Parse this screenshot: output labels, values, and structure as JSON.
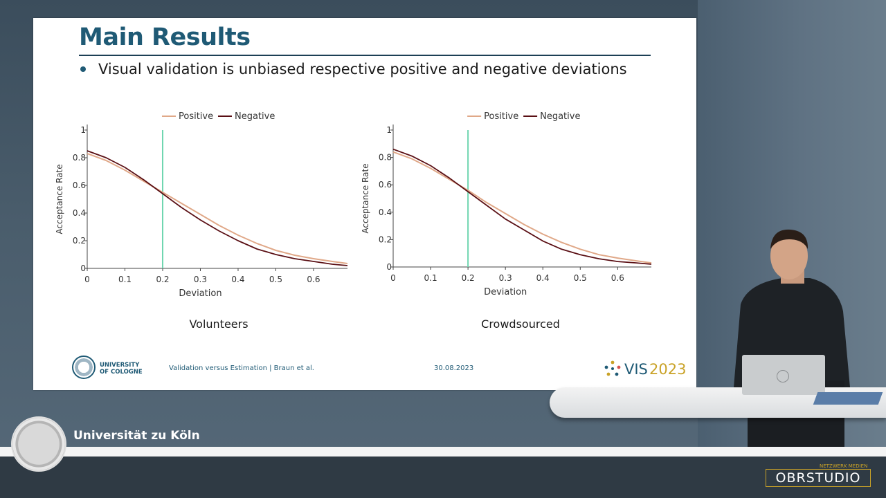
{
  "slide": {
    "title": "Main Results",
    "bullet": "Visual validation is unbiased respective positive and negative deviations",
    "footer": {
      "university_name": "UNIVERSITY\nOF COLOGNE",
      "citation": "Validation versus Estimation | Braun et al.",
      "date": "30.08.2023",
      "vis_text": "VIS",
      "vis_year": "2023"
    }
  },
  "stage": {
    "university_banner": "Universität zu Köln",
    "studio_brand": "OBRSTUDIO",
    "studio_tag": "NETZWERK MEDIEN"
  },
  "colors": {
    "positive": "#e0a888",
    "negative": "#5a0f14",
    "threshold": "#6fd6b0",
    "title": "#1f5a75"
  },
  "chart_data": [
    {
      "type": "line",
      "title": "Volunteers",
      "xlabel": "Deviation",
      "ylabel": "Acceptance Rate",
      "xlim": [
        0,
        0.69
      ],
      "ylim": [
        0,
        1
      ],
      "xticks": [
        "0",
        "0.1",
        "0.2",
        "0.3",
        "0.4",
        "0.5",
        "0.6"
      ],
      "yticks": [
        "0",
        "0.2",
        "0.4",
        "0.6",
        "0.8",
        "1"
      ],
      "legend_position": "top",
      "threshold_x": 0.2,
      "x": [
        0,
        0.05,
        0.1,
        0.15,
        0.2,
        0.25,
        0.3,
        0.35,
        0.4,
        0.45,
        0.5,
        0.55,
        0.6,
        0.65,
        0.69
      ],
      "series": [
        {
          "name": "Positive",
          "values": [
            0.83,
            0.78,
            0.71,
            0.63,
            0.55,
            0.47,
            0.39,
            0.31,
            0.24,
            0.18,
            0.13,
            0.095,
            0.07,
            0.05,
            0.035
          ]
        },
        {
          "name": "Negative",
          "values": [
            0.85,
            0.8,
            0.73,
            0.64,
            0.54,
            0.44,
            0.35,
            0.27,
            0.2,
            0.14,
            0.1,
            0.07,
            0.05,
            0.03,
            0.02
          ]
        }
      ]
    },
    {
      "type": "line",
      "title": "Crowdsourced",
      "xlabel": "Deviation",
      "ylabel": "Acceptance Rate",
      "xlim": [
        0,
        0.69
      ],
      "ylim": [
        0,
        1
      ],
      "xticks": [
        "0",
        "0.1",
        "0.2",
        "0.3",
        "0.4",
        "0.5",
        "0.6"
      ],
      "yticks": [
        "0",
        "0.2",
        "0.4",
        "0.6",
        "0.8",
        "1"
      ],
      "legend_position": "top",
      "threshold_x": 0.2,
      "x": [
        0,
        0.05,
        0.1,
        0.15,
        0.2,
        0.25,
        0.3,
        0.35,
        0.4,
        0.45,
        0.5,
        0.55,
        0.6,
        0.65,
        0.69
      ],
      "series": [
        {
          "name": "Positive",
          "values": [
            0.84,
            0.79,
            0.72,
            0.64,
            0.56,
            0.47,
            0.39,
            0.31,
            0.24,
            0.18,
            0.13,
            0.09,
            0.065,
            0.045,
            0.03
          ]
        },
        {
          "name": "Negative",
          "values": [
            0.86,
            0.81,
            0.74,
            0.65,
            0.55,
            0.45,
            0.35,
            0.27,
            0.19,
            0.13,
            0.09,
            0.06,
            0.04,
            0.03,
            0.02
          ]
        }
      ]
    }
  ]
}
